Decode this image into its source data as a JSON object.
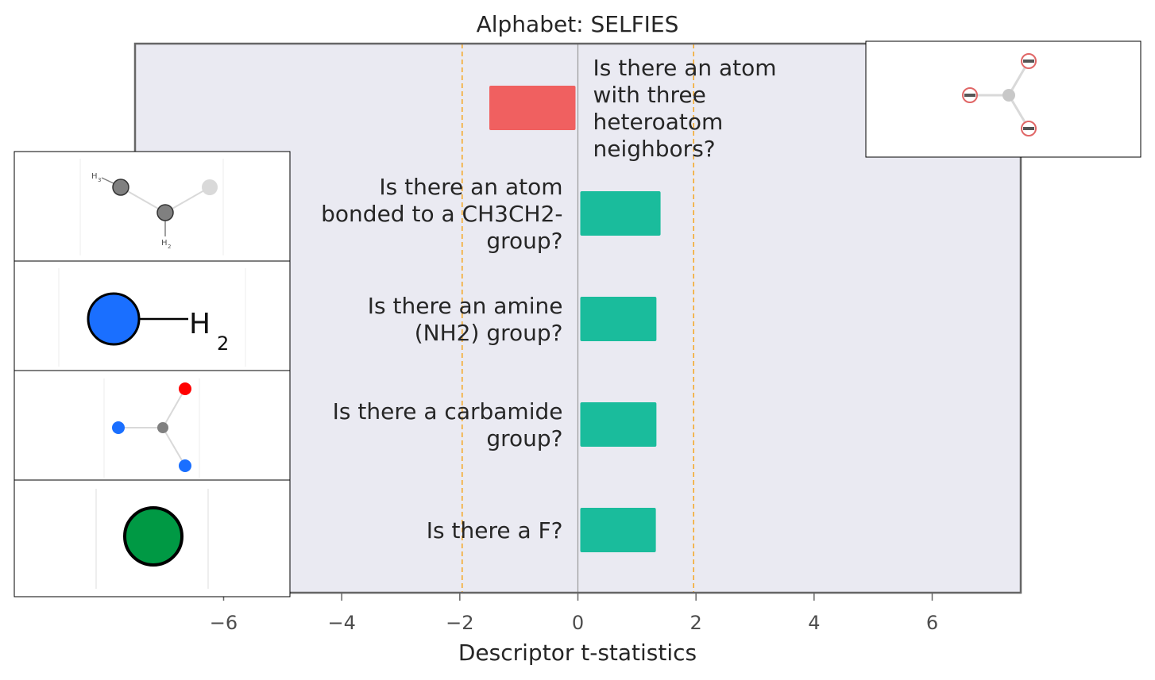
{
  "chart_data": {
    "type": "bar",
    "orientation": "horizontal",
    "title": "Alphabet: SELFIES",
    "xlabel": "Descriptor t-statistics",
    "ylabel": "",
    "xlim": [
      -7.5,
      7.5
    ],
    "xticks": [
      -6,
      -4,
      -2,
      0,
      2,
      4,
      6
    ],
    "xtick_labels": [
      "−6",
      "−4",
      "−2",
      "0",
      "2",
      "4",
      "6"
    ],
    "significance_lines": [
      -1.96,
      1.96
    ],
    "categories": [
      "Is there an atom with three heteroatom neighbors?",
      "Is there an atom bonded to a CH3CH2- group?",
      "Is there an amine (NH2) group?",
      "Is there a carbamide group?",
      "Is there a F?"
    ],
    "category_lines": [
      [
        "Is there an atom",
        "with three",
        "heteroatom",
        "neighbors?"
      ],
      [
        "Is there an atom",
        "bonded to a CH3CH2-",
        "group?"
      ],
      [
        "Is there an amine",
        "(NH2) group?"
      ],
      [
        "Is there a carbamide",
        "group?"
      ],
      [
        "Is there a F?"
      ]
    ],
    "values": [
      -1.5,
      1.4,
      1.33,
      1.33,
      1.32
    ],
    "grid": false,
    "colors": {
      "positive": "#1abc9c",
      "negative": "#f06060",
      "plot_background": "#eaeaf2",
      "frame": "#666666",
      "significance_line": "#f5a623",
      "zero_line": "#999999"
    }
  },
  "insets": [
    {
      "side": "right",
      "bar": 0,
      "depicts": "trigonal-center-three-heteroatoms-icon",
      "colors": {
        "center": "#c8c8c8",
        "neighbor": "#e06666"
      }
    },
    {
      "side": "left",
      "bar": 1,
      "depicts": "ethyl-fragment-icon",
      "text": [
        "H",
        "3",
        "H",
        "2"
      ],
      "colors": {
        "atom": "#808080",
        "light": "#d9d9d9"
      }
    },
    {
      "side": "left",
      "bar": 2,
      "depicts": "amine-nh2-icon",
      "text": [
        "H",
        "2"
      ],
      "colors": {
        "nitrogen": "#1a6fff"
      }
    },
    {
      "side": "left",
      "bar": 3,
      "depicts": "carbamide-icon",
      "colors": {
        "carbon": "#808080",
        "oxygen": "#ff0000",
        "nitrogen": "#1a6fff"
      }
    },
    {
      "side": "left",
      "bar": 4,
      "depicts": "fluorine-atom-icon",
      "colors": {
        "fluorine": "#009944"
      }
    }
  ]
}
